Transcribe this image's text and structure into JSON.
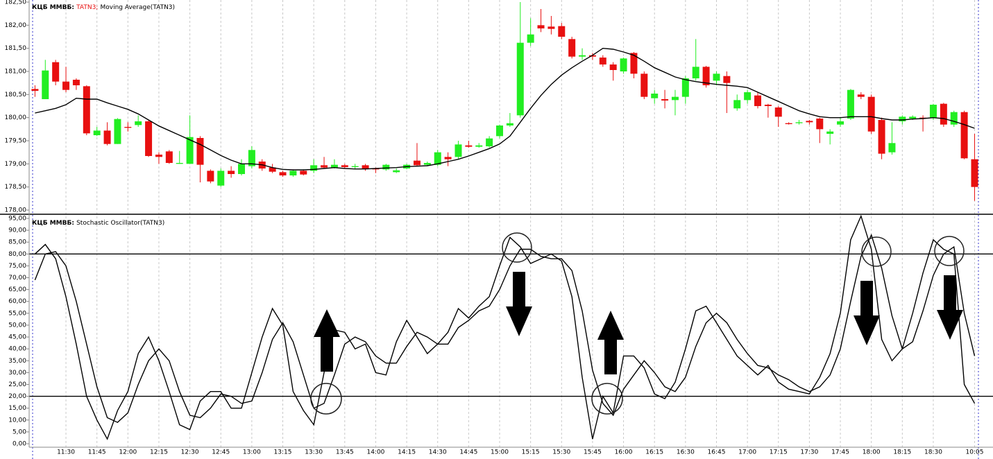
{
  "chart_data": [
    {
      "type": "candlestick",
      "title": "КЦБ ММВБ:",
      "ylim": [
        178,
        182.5
      ],
      "yticks": [
        {
          "value": 178,
          "label": "178,00"
        },
        {
          "value": 178.5,
          "label": "178,50"
        },
        {
          "value": 179,
          "label": "179,00"
        },
        {
          "value": 179.5,
          "label": "179,50"
        },
        {
          "value": 180,
          "label": "180,00"
        },
        {
          "value": 180.5,
          "label": "180,50"
        },
        {
          "value": 181,
          "label": "181,00"
        },
        {
          "value": 181.5,
          "label": "181,50"
        },
        {
          "value": 182,
          "label": "182,00"
        },
        {
          "value": 182.5,
          "label": "182,50"
        }
      ],
      "series": [
        {
          "name": "TATN3;",
          "color": "#e81010",
          "up_color": "#22ee22",
          "down_color": "#e81010",
          "open": [
            180.62,
            180.4,
            181.2,
            180.78,
            180.82,
            180.68,
            179.62,
            179.72,
            179.43,
            179.8,
            179.84,
            179.92,
            179.2,
            179.27,
            179.0,
            179.0,
            179.56,
            178.85,
            178.53,
            178.85,
            178.78,
            178.95,
            179.05,
            178.92,
            178.82,
            178.75,
            178.85,
            178.85,
            178.97,
            178.92,
            178.97,
            178.93,
            178.97,
            178.9,
            178.88,
            178.82,
            178.9,
            179.07,
            178.98,
            178.98,
            179.15,
            179.15,
            179.4,
            179.37,
            179.38,
            179.6,
            179.83,
            180.05,
            181.62,
            182.0,
            181.97,
            181.98,
            181.7,
            181.32,
            181.35,
            181.3,
            181.15,
            181.0,
            181.4,
            180.95,
            180.42,
            180.4,
            180.38,
            180.45,
            180.85,
            181.1,
            180.8,
            180.9,
            180.2,
            180.38,
            180.48,
            180.28,
            180.22,
            179.88,
            179.88,
            179.93,
            179.98,
            179.65,
            179.85,
            179.98,
            180.5,
            180.45,
            179.95,
            179.25,
            179.92,
            179.98,
            180.0,
            180.0,
            180.3,
            179.85,
            180.12,
            179.1
          ],
          "high": [
            180.7,
            181.25,
            181.25,
            181.1,
            180.85,
            180.7,
            179.8,
            179.9,
            179.99,
            179.9,
            180.05,
            179.95,
            179.25,
            179.3,
            179.28,
            180.05,
            179.6,
            178.88,
            178.9,
            178.95,
            179.1,
            179.38,
            179.1,
            179.0,
            178.85,
            178.88,
            178.88,
            179.1,
            179.15,
            179.1,
            179.0,
            179.0,
            179.0,
            178.92,
            179.0,
            178.9,
            179.0,
            179.45,
            179.05,
            179.3,
            179.25,
            179.5,
            179.5,
            179.45,
            179.6,
            179.85,
            180.1,
            182.5,
            182.15,
            182.35,
            182.2,
            182.05,
            181.75,
            181.5,
            181.4,
            181.35,
            181.2,
            181.3,
            181.42,
            181.0,
            180.6,
            180.6,
            180.6,
            180.9,
            181.7,
            181.12,
            181.0,
            181.0,
            180.5,
            180.6,
            180.55,
            180.3,
            180.25,
            179.9,
            179.95,
            179.95,
            180.0,
            179.75,
            180.0,
            180.62,
            180.55,
            180.5,
            180.0,
            179.9,
            180.05,
            180.05,
            180.05,
            180.3,
            180.32,
            180.15,
            180.15,
            179.65
          ],
          "low": [
            180.45,
            180.4,
            180.7,
            180.55,
            180.6,
            179.62,
            179.6,
            179.4,
            179.43,
            179.7,
            179.8,
            179.15,
            179.0,
            179.0,
            179.0,
            179.0,
            178.6,
            178.58,
            178.5,
            178.7,
            178.75,
            178.9,
            178.85,
            178.8,
            178.72,
            178.72,
            178.75,
            178.8,
            178.9,
            178.9,
            178.9,
            178.88,
            178.85,
            178.8,
            178.85,
            178.8,
            178.88,
            178.95,
            178.95,
            178.95,
            178.95,
            179.1,
            179.35,
            179.35,
            179.35,
            179.55,
            179.8,
            180.0,
            181.55,
            181.85,
            181.8,
            181.7,
            181.28,
            181.25,
            181.25,
            181.1,
            180.8,
            180.95,
            180.85,
            180.4,
            180.3,
            180.2,
            180.05,
            180.3,
            180.8,
            180.65,
            180.7,
            180.1,
            180.15,
            180.3,
            180.2,
            180.0,
            179.8,
            179.85,
            179.85,
            179.85,
            179.45,
            179.42,
            179.8,
            179.95,
            180.4,
            179.65,
            179.1,
            179.2,
            179.85,
            179.95,
            179.7,
            179.95,
            179.8,
            179.8,
            179.1,
            178.2
          ],
          "close": [
            180.58,
            181.02,
            180.78,
            180.6,
            180.7,
            179.66,
            179.72,
            179.43,
            179.97,
            179.78,
            179.92,
            179.17,
            179.15,
            179.02,
            179.02,
            179.58,
            178.98,
            178.62,
            178.85,
            178.78,
            179.0,
            179.3,
            178.9,
            178.83,
            178.75,
            178.85,
            178.77,
            178.97,
            178.92,
            178.98,
            178.93,
            178.95,
            178.9,
            178.88,
            178.98,
            178.86,
            178.98,
            178.97,
            179.02,
            179.25,
            179.1,
            179.42,
            179.37,
            179.4,
            179.55,
            179.83,
            179.88,
            181.62,
            181.8,
            181.93,
            181.92,
            181.75,
            181.32,
            181.35,
            181.32,
            181.15,
            181.03,
            181.28,
            180.95,
            180.45,
            180.52,
            180.37,
            180.45,
            180.85,
            181.1,
            180.7,
            180.95,
            180.75,
            180.38,
            180.55,
            180.25,
            180.25,
            180.02,
            179.86,
            179.9,
            179.9,
            179.75,
            179.7,
            179.92,
            180.6,
            180.45,
            179.7,
            179.22,
            179.45,
            180.02,
            180.02,
            179.98,
            180.28,
            179.85,
            180.12,
            179.12,
            178.5
          ]
        },
        {
          "name": "Moving Average(TATN3)",
          "color": "#000000",
          "type": "line",
          "values": [
            180.1,
            180.15,
            180.2,
            180.28,
            180.42,
            180.4,
            180.4,
            180.32,
            180.25,
            180.18,
            180.08,
            179.95,
            179.82,
            179.72,
            179.62,
            179.52,
            179.42,
            179.3,
            179.18,
            179.08,
            179.0,
            179.0,
            178.98,
            178.92,
            178.88,
            178.87,
            178.87,
            178.88,
            178.9,
            178.92,
            178.9,
            178.89,
            178.89,
            178.9,
            178.91,
            178.92,
            178.94,
            178.95,
            178.96,
            179.0,
            179.05,
            179.1,
            179.17,
            179.25,
            179.33,
            179.43,
            179.6,
            179.9,
            180.2,
            180.48,
            180.72,
            180.92,
            181.08,
            181.22,
            181.35,
            181.5,
            181.48,
            181.42,
            181.35,
            181.22,
            181.08,
            180.98,
            180.88,
            180.82,
            180.78,
            180.75,
            180.72,
            180.7,
            180.68,
            180.65,
            180.55,
            180.45,
            180.35,
            180.25,
            180.15,
            180.08,
            180.02,
            180.0,
            180.0,
            180.02,
            180.02,
            180.02,
            179.98,
            179.95,
            179.95,
            179.97,
            179.98,
            180.0,
            179.98,
            179.92,
            179.85,
            179.77
          ]
        }
      ]
    },
    {
      "type": "line",
      "title": "КЦБ ММВБ:",
      "label": "Stochastic Oscillator(TATN3)",
      "ylim": [
        0,
        95
      ],
      "yticks": [
        {
          "value": 0,
          "label": "0,00"
        },
        {
          "value": 5,
          "label": "5,00"
        },
        {
          "value": 10,
          "label": "10,00"
        },
        {
          "value": 15,
          "label": "15,00"
        },
        {
          "value": 20,
          "label": "20,00"
        },
        {
          "value": 25,
          "label": "25,00"
        },
        {
          "value": 30,
          "label": "30,00"
        },
        {
          "value": 35,
          "label": "35,00"
        },
        {
          "value": 40,
          "label": "40,00"
        },
        {
          "value": 45,
          "label": "45,00"
        },
        {
          "value": 50,
          "label": "50,00"
        },
        {
          "value": 55,
          "label": "55,00"
        },
        {
          "value": 60,
          "label": "60,00"
        },
        {
          "value": 65,
          "label": "65,00"
        },
        {
          "value": 70,
          "label": "70,00"
        },
        {
          "value": 75,
          "label": "75,00"
        },
        {
          "value": 80,
          "label": "80,00"
        },
        {
          "value": 85,
          "label": "85,00"
        },
        {
          "value": 90,
          "label": "90,00"
        },
        {
          "value": 95,
          "label": "95,00"
        }
      ],
      "levels": [
        20,
        80
      ],
      "categories": [
        null,
        null,
        null,
        "11:30",
        null,
        null,
        "11:45",
        null,
        null,
        "12:00",
        null,
        null,
        "12:15",
        null,
        null,
        "12:30",
        null,
        null,
        "12:45",
        null,
        null,
        "13:00",
        null,
        null,
        "13:15",
        null,
        null,
        "13:30",
        null,
        null,
        "13:45",
        null,
        null,
        "14:00",
        null,
        null,
        "14:15",
        null,
        null,
        "14:30",
        null,
        null,
        "14:45",
        null,
        null,
        "15:00",
        null,
        null,
        "15:15",
        null,
        null,
        "15:30",
        null,
        null,
        "15:45",
        null,
        null,
        "16:00",
        null,
        null,
        "16:15",
        null,
        null,
        "16:30",
        null,
        null,
        "16:45",
        null,
        null,
        "17:00",
        null,
        null,
        "17:15",
        null,
        null,
        "17:30",
        null,
        null,
        "17:45",
        null,
        null,
        "18:00",
        null,
        null,
        "18:15",
        null,
        null,
        "18:30",
        null,
        null,
        null,
        "10:05"
      ],
      "series": [
        {
          "color": "#000000",
          "values": [
            80,
            84,
            78,
            62,
            42,
            20,
            10,
            2,
            14,
            22,
            38,
            45,
            35,
            22,
            8,
            6,
            18,
            22,
            22,
            15,
            15,
            30,
            45,
            57,
            50,
            22,
            14,
            8,
            30,
            48,
            47,
            40,
            42,
            30,
            29,
            43,
            52,
            45,
            38,
            42,
            47,
            57,
            53,
            58,
            62,
            75,
            87,
            83,
            76,
            78,
            80,
            77,
            62,
            28,
            2,
            20,
            13,
            37,
            37,
            32,
            21,
            19,
            26,
            40,
            56,
            58,
            51,
            44,
            37,
            33,
            29,
            33,
            26,
            23,
            22,
            21,
            28,
            38,
            55,
            86,
            96,
            82,
            44,
            35,
            40,
            55,
            72,
            86,
            82,
            80,
            25,
            17
          ]
        },
        {
          "color": "#000000",
          "values": [
            69,
            80,
            81,
            75,
            60,
            42,
            24,
            11,
            9,
            13,
            25,
            35,
            40,
            35,
            22,
            12,
            11,
            15,
            21,
            20,
            17,
            18,
            30,
            44,
            51,
            43,
            29,
            15,
            17,
            29,
            42,
            45,
            43,
            37,
            34,
            34,
            41,
            47,
            45,
            42,
            42,
            49,
            52,
            56,
            58,
            65,
            75,
            82,
            82,
            79,
            78,
            78,
            73,
            56,
            31,
            17,
            12,
            23,
            29,
            35,
            30,
            24,
            22,
            28,
            41,
            51,
            55,
            51,
            44,
            38,
            33,
            32,
            29,
            27,
            24,
            22,
            24,
            29,
            40,
            60,
            79,
            88,
            74,
            54,
            40,
            43,
            56,
            71,
            80,
            83,
            55,
            37
          ]
        }
      ]
    }
  ]
}
